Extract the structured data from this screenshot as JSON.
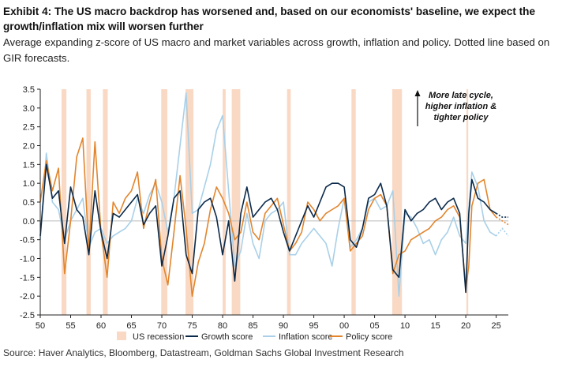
{
  "header": {
    "title": "Exhibit 4: The US macro backdrop has worsened and, based on our economists' baseline, we expect the growth/inflation mix will worsen further",
    "subtitle": "Average expanding z-score of US macro and market variables across growth, inflation and policy. Dotted line based on GIR forecasts."
  },
  "footer": {
    "source": "Source: Haver Analytics, Bloomberg, Datastream, Goldman Sachs Global Investment Research"
  },
  "chart_data": {
    "type": "line",
    "title": "",
    "xlabel": "",
    "ylabel": "",
    "xlim": [
      1950,
      2027
    ],
    "ylim": [
      -2.5,
      3.5
    ],
    "x_ticks": [
      50,
      55,
      60,
      65,
      70,
      75,
      80,
      85,
      90,
      95,
      "00",
      "05",
      10,
      15,
      20,
      25
    ],
    "y_ticks": [
      "3.5",
      "3.0",
      "2.5",
      "2.0",
      "1.5",
      "1.0",
      "0.5",
      "0.0",
      "-0.5",
      "-1.0",
      "-1.5",
      "-2.0",
      "-2.5"
    ],
    "grid": false,
    "legend_position": "bottom",
    "recessions": [
      [
        1953.5,
        1954.3
      ],
      [
        1957.6,
        1958.3
      ],
      [
        1960.3,
        1961.1
      ],
      [
        1969.9,
        1970.9
      ],
      [
        1973.9,
        1975.2
      ],
      [
        1980.0,
        1980.5
      ],
      [
        1981.5,
        1982.9
      ],
      [
        1990.6,
        1991.2
      ],
      [
        2001.2,
        2001.9
      ],
      [
        2007.9,
        2009.5
      ],
      [
        2020.1,
        2020.4
      ]
    ],
    "legend": [
      {
        "label": "US recession",
        "color": "#f9d9c4"
      },
      {
        "label": "Growth score",
        "color": "#0b2a4a"
      },
      {
        "label": "Inflation score",
        "color": "#a9d0e8"
      },
      {
        "label": "Policy score",
        "color": "#e2852d"
      }
    ],
    "series": [
      {
        "name": "Growth score",
        "color": "#0b2a4a",
        "x": [
          1950,
          1951,
          1952,
          1953,
          1954,
          1955,
          1956,
          1957,
          1958,
          1959,
          1960,
          1961,
          1962,
          1963,
          1964,
          1965,
          1966,
          1967,
          1968,
          1969,
          1970,
          1971,
          1972,
          1973,
          1974,
          1975,
          1976,
          1977,
          1978,
          1979,
          1980,
          1981,
          1982,
          1983,
          1984,
          1985,
          1986,
          1987,
          1988,
          1989,
          1990,
          1991,
          1992,
          1993,
          1994,
          1995,
          1996,
          1997,
          1998,
          1999,
          2000,
          2001,
          2002,
          2003,
          2004,
          2005,
          2006,
          2007,
          2008,
          2009,
          2010,
          2011,
          2012,
          2013,
          2014,
          2015,
          2016,
          2017,
          2018,
          2019,
          2020,
          2020.5,
          2021,
          2022,
          2023,
          2024,
          2025
        ],
        "y": [
          -0.4,
          1.5,
          0.6,
          0.8,
          -0.6,
          0.9,
          0.3,
          0.1,
          -0.9,
          0.8,
          -0.3,
          -1.0,
          0.2,
          0.1,
          0.3,
          0.5,
          0.7,
          -0.1,
          0.2,
          0.4,
          -1.2,
          -0.4,
          0.6,
          0.8,
          -0.9,
          -1.4,
          0.3,
          0.5,
          0.6,
          0.1,
          -0.9,
          0.0,
          -1.6,
          0.2,
          0.9,
          0.1,
          0.3,
          0.5,
          0.6,
          0.3,
          -0.3,
          -0.8,
          -0.4,
          0.0,
          0.4,
          0.1,
          0.5,
          0.9,
          1.0,
          1.0,
          0.9,
          -0.5,
          -0.7,
          -0.2,
          0.6,
          0.7,
          1.0,
          0.4,
          -1.3,
          -1.5,
          0.3,
          0.0,
          0.2,
          0.3,
          0.5,
          0.6,
          0.3,
          0.5,
          0.6,
          0.2,
          -1.9,
          0.2,
          1.1,
          0.6,
          0.5,
          0.3,
          0.2
        ]
      },
      {
        "name": "Inflation score",
        "color": "#a9d0e8",
        "x": [
          1950,
          1951,
          1952,
          1953,
          1954,
          1955,
          1956,
          1957,
          1958,
          1959,
          1960,
          1961,
          1962,
          1963,
          1964,
          1965,
          1966,
          1967,
          1968,
          1969,
          1970,
          1971,
          1972,
          1973,
          1974,
          1975,
          1976,
          1977,
          1978,
          1979,
          1980,
          1981,
          1982,
          1983,
          1984,
          1985,
          1986,
          1987,
          1988,
          1989,
          1990,
          1991,
          1992,
          1993,
          1994,
          1995,
          1996,
          1997,
          1998,
          1999,
          2000,
          2001,
          2002,
          2003,
          2004,
          2005,
          2006,
          2007,
          2008,
          2009,
          2010,
          2011,
          2012,
          2013,
          2014,
          2015,
          2016,
          2017,
          2018,
          2019,
          2020,
          2021,
          2022,
          2023,
          2024,
          2025
        ],
        "y": [
          -0.5,
          1.8,
          0.5,
          0.3,
          -0.5,
          0.0,
          0.3,
          0.6,
          -0.7,
          -0.3,
          -0.2,
          -0.6,
          -0.4,
          -0.3,
          -0.2,
          0.0,
          0.6,
          0.2,
          0.7,
          1.0,
          0.5,
          -0.3,
          0.6,
          2.0,
          3.4,
          0.2,
          0.3,
          0.9,
          1.5,
          2.4,
          2.8,
          0.8,
          -1.2,
          -0.8,
          0.2,
          -0.6,
          -1.0,
          0.0,
          0.2,
          0.3,
          0.5,
          -0.9,
          -0.9,
          -0.6,
          -0.4,
          -0.2,
          -0.4,
          -0.6,
          -1.2,
          -0.2,
          0.6,
          -0.7,
          -0.5,
          -0.2,
          0.5,
          0.6,
          0.3,
          0.4,
          0.8,
          -2.0,
          0.2,
          0.1,
          -0.2,
          -0.6,
          -0.5,
          -0.9,
          -0.5,
          -0.3,
          0.1,
          -0.4,
          -0.6,
          1.3,
          0.9,
          0.0,
          -0.3,
          -0.4
        ]
      },
      {
        "name": "Policy score",
        "color": "#e2852d",
        "x": [
          1950,
          1951,
          1952,
          1953,
          1954,
          1955,
          1956,
          1957,
          1958,
          1959,
          1960,
          1961,
          1962,
          1963,
          1964,
          1965,
          1966,
          1967,
          1968,
          1969,
          1970,
          1971,
          1972,
          1973,
          1974,
          1975,
          1976,
          1977,
          1978,
          1979,
          1980,
          1981,
          1982,
          1983,
          1984,
          1985,
          1986,
          1987,
          1988,
          1989,
          1990,
          1991,
          1992,
          1993,
          1994,
          1995,
          1996,
          1997,
          1998,
          1999,
          2000,
          2001,
          2002,
          2003,
          2004,
          2005,
          2006,
          2007,
          2008,
          2009,
          2010,
          2011,
          2012,
          2013,
          2014,
          2015,
          2016,
          2017,
          2018,
          2019,
          2020,
          2020.5,
          2021,
          2022,
          2023,
          2024,
          2025
        ],
        "y": [
          0.5,
          1.6,
          0.8,
          1.4,
          -1.4,
          0.0,
          1.7,
          2.2,
          -0.8,
          2.1,
          -0.3,
          -1.5,
          0.5,
          0.2,
          0.6,
          0.8,
          1.3,
          -0.2,
          0.5,
          1.1,
          -1.0,
          -1.7,
          -0.3,
          1.2,
          -0.2,
          -2.0,
          -1.1,
          -0.6,
          0.3,
          0.9,
          0.6,
          0.2,
          -0.5,
          -0.3,
          0.5,
          -0.3,
          -0.5,
          0.2,
          0.4,
          0.6,
          -0.1,
          -0.8,
          -0.6,
          -0.3,
          0.5,
          0.3,
          0.0,
          0.2,
          0.3,
          0.4,
          0.6,
          -0.8,
          -0.6,
          -0.4,
          0.3,
          0.6,
          0.7,
          0.4,
          -1.4,
          -0.9,
          -0.8,
          -0.5,
          -0.4,
          -0.3,
          -0.2,
          0.0,
          0.1,
          0.3,
          0.4,
          0.1,
          -1.8,
          -1.2,
          0.4,
          1.0,
          1.1,
          0.3,
          0.1
        ]
      },
      {
        "name": "Growth score (forecast)",
        "color": "#0b2a4a",
        "dotted": true,
        "x": [
          2025,
          2026,
          2027
        ],
        "y": [
          0.2,
          0.1,
          0.1
        ]
      },
      {
        "name": "Inflation score (forecast)",
        "color": "#a9d0e8",
        "dotted": true,
        "x": [
          2025,
          2026,
          2027
        ],
        "y": [
          -0.4,
          -0.2,
          -0.4
        ]
      },
      {
        "name": "Policy score (forecast)",
        "color": "#e2852d",
        "dotted": true,
        "x": [
          2025,
          2026,
          2027
        ],
        "y": [
          0.1,
          0.0,
          -0.1
        ]
      }
    ],
    "annotation": {
      "lines": [
        "More late cycle,",
        "higher inflation &",
        "tighter policy"
      ]
    }
  }
}
